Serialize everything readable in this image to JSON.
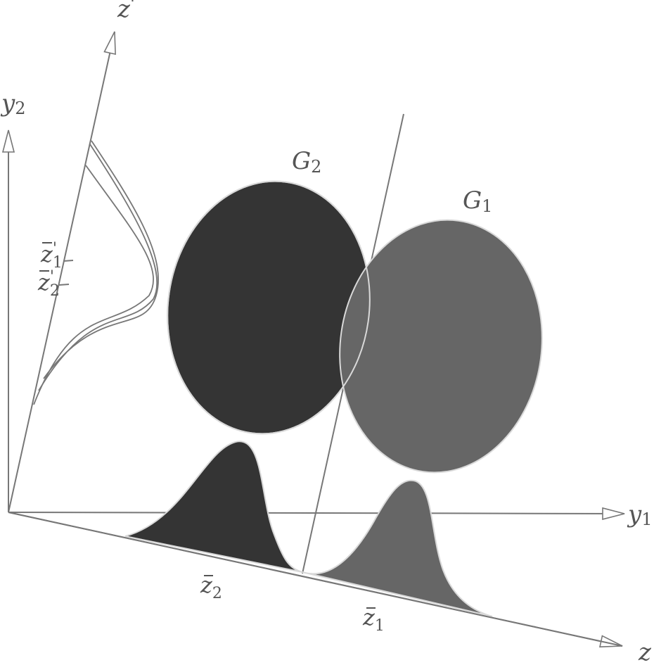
{
  "colors": {
    "background": "#ffffff",
    "axis": "#777777",
    "group2_fill": "#343434",
    "group1_fill": "#666666",
    "outline": "#d9d9d9",
    "label": "#555555"
  },
  "axes": {
    "y1": {
      "base": "y",
      "sub": "1"
    },
    "y2": {
      "base": "y",
      "sub": "2"
    },
    "z": {
      "base": "z"
    },
    "z_prime": {
      "base": "z",
      "prime": "'"
    }
  },
  "groups": {
    "g1": {
      "base": "G",
      "sub": "1"
    },
    "g2": {
      "base": "G",
      "sub": "2"
    }
  },
  "means": {
    "z1_bar": {
      "base": "z",
      "sub": "1"
    },
    "z2_bar": {
      "base": "z",
      "sub": "2"
    },
    "z1_prime_bar": {
      "base": "z",
      "prime": "'",
      "sub": "1"
    },
    "z2_prime_bar": {
      "base": "z",
      "prime": "'",
      "sub": "2"
    }
  }
}
